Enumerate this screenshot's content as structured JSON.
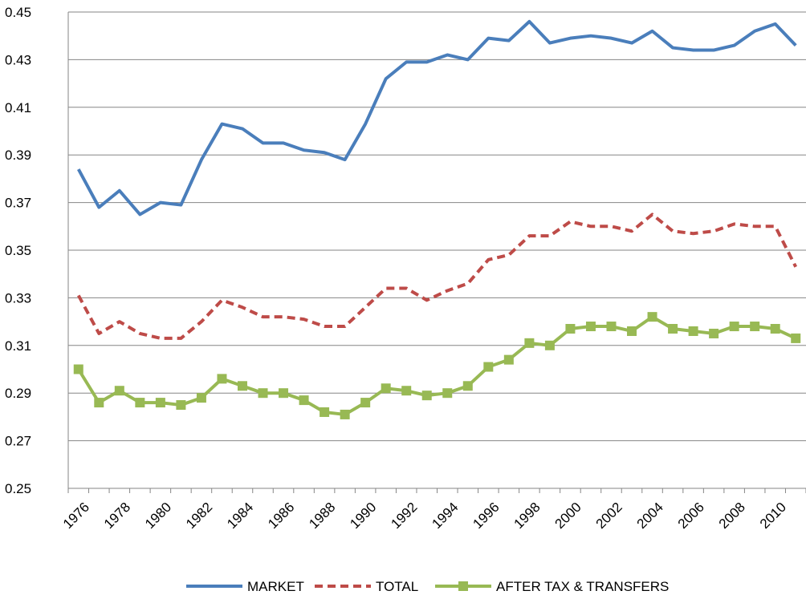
{
  "chart_data": {
    "type": "line",
    "categories": [
      "1976",
      null,
      "1978",
      null,
      "1980",
      null,
      "1982",
      null,
      "1984",
      null,
      "1986",
      null,
      "1988",
      null,
      "1990",
      null,
      "1992",
      null,
      "1994",
      null,
      "1996",
      null,
      "1998",
      null,
      "2000",
      null,
      "2002",
      null,
      "2004",
      null,
      "2006",
      null,
      "2008",
      null,
      "2010",
      null
    ],
    "series": [
      {
        "name": "MARKET",
        "color": "#4a7ebb",
        "dash": false,
        "marker": false,
        "values": [
          0.384,
          0.368,
          0.375,
          0.365,
          0.37,
          0.369,
          0.388,
          0.403,
          0.401,
          0.395,
          0.395,
          0.392,
          0.391,
          0.388,
          0.403,
          0.422,
          0.429,
          0.429,
          0.432,
          0.43,
          0.439,
          0.438,
          0.446,
          0.437,
          0.439,
          0.44,
          0.439,
          0.437,
          0.442,
          0.435,
          0.434,
          0.434,
          0.436,
          0.442,
          0.445,
          0.436
        ]
      },
      {
        "name": "TOTAL",
        "color": "#be4b48",
        "dash": true,
        "marker": false,
        "values": [
          0.331,
          0.315,
          0.32,
          0.315,
          0.313,
          0.313,
          0.32,
          0.329,
          0.326,
          0.322,
          0.322,
          0.321,
          0.318,
          0.318,
          0.326,
          0.334,
          0.334,
          0.329,
          0.333,
          0.336,
          0.346,
          0.348,
          0.356,
          0.356,
          0.362,
          0.36,
          0.36,
          0.358,
          0.365,
          0.358,
          0.357,
          0.358,
          0.361,
          0.36,
          0.36,
          0.343
        ]
      },
      {
        "name": "AFTER TAX & TRANSFERS",
        "color": "#98b954",
        "dash": false,
        "marker": true,
        "values": [
          0.3,
          0.286,
          0.291,
          0.286,
          0.286,
          0.285,
          0.288,
          0.296,
          0.293,
          0.29,
          0.29,
          0.287,
          0.282,
          0.281,
          0.286,
          0.292,
          0.291,
          0.289,
          0.29,
          0.293,
          0.301,
          0.304,
          0.311,
          0.31,
          0.317,
          0.318,
          0.318,
          0.316,
          0.322,
          0.317,
          0.316,
          0.315,
          0.318,
          0.318,
          0.317,
          0.313
        ]
      }
    ],
    "ylim": [
      0.25,
      0.45
    ],
    "yticks": [
      0.25,
      0.27,
      0.29,
      0.31,
      0.33,
      0.35,
      0.37,
      0.39,
      0.41,
      0.43,
      0.45
    ],
    "grid": true,
    "legend": "bottom"
  }
}
